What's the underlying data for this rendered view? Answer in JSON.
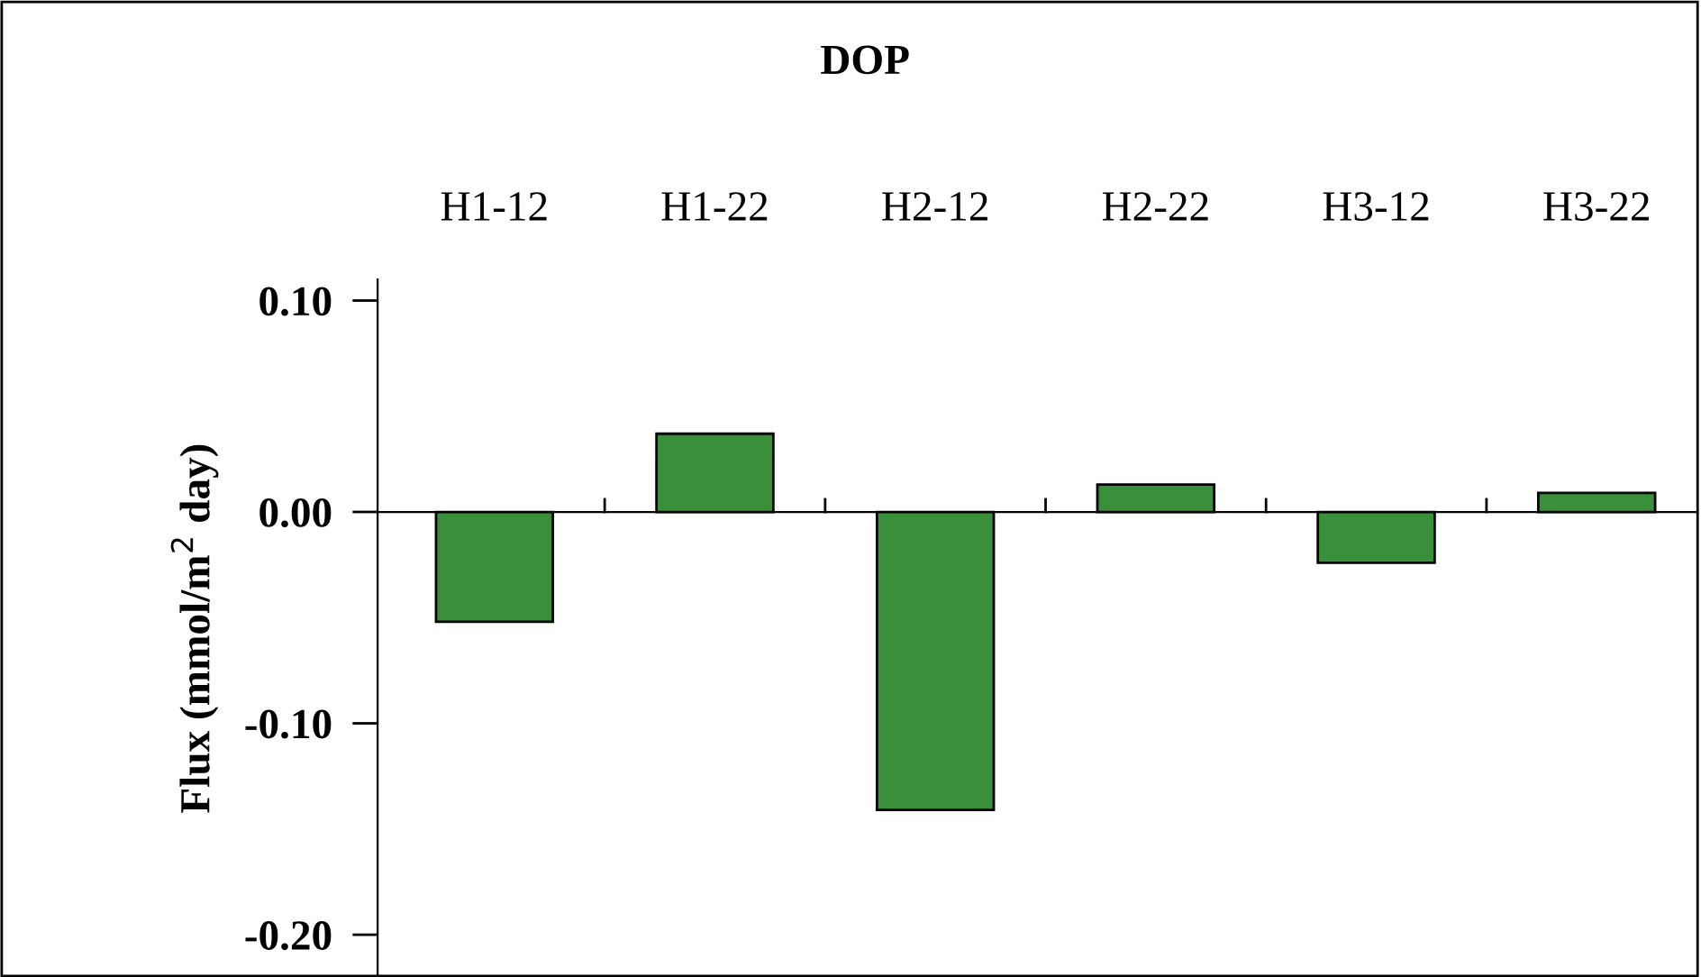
{
  "chart_data": {
    "type": "bar",
    "title": "DOP",
    "ylabel": "Flux (mmol/m$^{2}$ day)",
    "categories": [
      "H1-12",
      "H1-22",
      "H2-12",
      "H2-22",
      "H3-12",
      "H3-22"
    ],
    "values": [
      -0.052,
      0.037,
      -0.141,
      0.013,
      -0.024,
      0.009
    ],
    "color": "#3a8f3a",
    "ylim": [
      -0.22,
      0.11
    ],
    "yticks": [
      {
        "value": 0.1,
        "label": "0.10"
      },
      {
        "value": 0.0,
        "label": "0.00"
      },
      {
        "value": -0.1,
        "label": "-0.10"
      },
      {
        "value": -0.2,
        "label": "-0.20"
      }
    ],
    "legend": false
  }
}
